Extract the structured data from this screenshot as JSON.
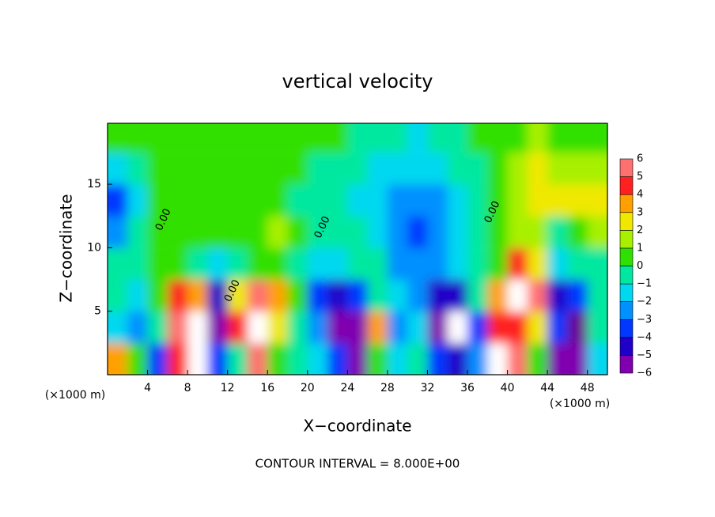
{
  "chart_data": {
    "type": "contour",
    "title": "vertical velocity",
    "xlabel": "X−coordinate",
    "ylabel": "Z−coordinate",
    "xunit": "(×1000 m)",
    "yunit": "(×1000 m)",
    "footer": "CONTOUR INTERVAL = 8.000E+00",
    "xlim": [
      0,
      50
    ],
    "ylim": [
      0,
      19.8
    ],
    "xticks": [
      4,
      8,
      12,
      16,
      20,
      24,
      28,
      32,
      36,
      40,
      44,
      48
    ],
    "yticks": [
      5,
      10,
      15
    ],
    "x": [
      1,
      3,
      5,
      7,
      9,
      11,
      13,
      15,
      17,
      19,
      21,
      23,
      25,
      27,
      29,
      31,
      33,
      35,
      37,
      39,
      41,
      43,
      45,
      47,
      49
    ],
    "y": [
      1.25,
      3.75,
      6.25,
      8.75,
      11.25,
      13.75,
      16.25,
      18.75
    ],
    "z": [
      [
        4,
        1,
        -3,
        5,
        8,
        -3,
        0,
        6,
        1,
        0,
        -1,
        -3,
        -5,
        1,
        -1,
        0,
        -3,
        -4,
        -2,
        7,
        6,
        1,
        -5,
        -6,
        -1
      ],
      [
        -1,
        -2,
        0,
        6,
        9,
        -6,
        5,
        8,
        3,
        0,
        -2,
        -6,
        -5,
        4,
        -2,
        -1,
        -5,
        7,
        -3,
        5,
        5,
        3,
        -3,
        -7,
        0
      ],
      [
        0,
        -1,
        1,
        5,
        4,
        -4,
        3,
        6,
        4,
        1,
        -3,
        -4,
        -3,
        0,
        -1,
        -2,
        -4,
        -4,
        0,
        4,
        8,
        6,
        -4,
        -3,
        0
      ],
      [
        0,
        0,
        1,
        1,
        0,
        -1,
        0,
        1,
        1,
        0,
        -1,
        -1,
        0,
        0,
        -2,
        -2,
        -2,
        -1,
        0,
        1,
        5,
        3,
        -1,
        0,
        0
      ],
      [
        -2,
        0,
        1,
        1,
        1,
        1,
        1,
        1,
        2,
        1,
        0,
        0,
        0,
        -1,
        -2,
        -3,
        -2,
        -1,
        0,
        1,
        2,
        2,
        0,
        1,
        2
      ],
      [
        -3,
        -1,
        1,
        1,
        1,
        1,
        1,
        1,
        1,
        0,
        0,
        0,
        -1,
        -1,
        -2,
        -2,
        -2,
        -1,
        0,
        1,
        2,
        3,
        3,
        3,
        3
      ],
      [
        -1,
        0,
        1,
        1,
        1,
        1,
        1,
        1,
        1,
        1,
        0,
        0,
        0,
        -1,
        -1,
        -1,
        -1,
        0,
        0,
        1,
        2,
        3,
        2,
        2,
        2
      ],
      [
        1,
        1,
        1,
        1,
        1,
        1,
        1,
        1,
        1,
        1,
        1,
        1,
        0,
        0,
        0,
        -1,
        0,
        0,
        1,
        1,
        1,
        2,
        1,
        1,
        1
      ]
    ],
    "levels": [
      -6,
      -5,
      -4,
      -3,
      -2,
      -1,
      0,
      1,
      2,
      3,
      4,
      5,
      6
    ],
    "level_labels": [
      "−6",
      "−5",
      "−4",
      "−3",
      "−2",
      "−1",
      "0",
      "1",
      "2",
      "3",
      "4",
      "5",
      "6"
    ],
    "colors": [
      "#8000b0",
      "#2000c8",
      "#0038ff",
      "#0090ff",
      "#00d8f0",
      "#00e8a0",
      "#30e000",
      "#a8f000",
      "#f0e800",
      "#ffa000",
      "#ff2020",
      "#ff7070"
    ],
    "under_color": "#6a0090",
    "over_color": "#ffffff",
    "annotations": [
      {
        "text": "0.00",
        "x": 5.6,
        "y": 12.2
      },
      {
        "text": "0.00",
        "x": 12.5,
        "y": 6.6
      },
      {
        "text": "0.00",
        "x": 21.5,
        "y": 11.6
      },
      {
        "text": "0.00",
        "x": 38.5,
        "y": 12.8
      }
    ]
  }
}
